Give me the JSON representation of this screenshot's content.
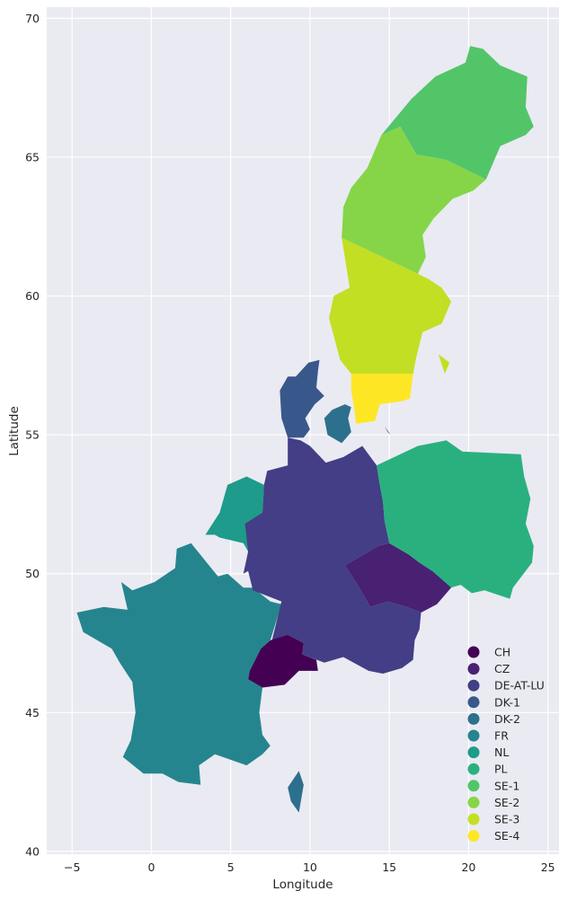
{
  "chart_data": {
    "type": "map",
    "xlabel": "Longitude",
    "ylabel": "Latitude",
    "xlim": [
      -6.6,
      25.7
    ],
    "ylim": [
      39.9,
      70.4
    ],
    "x_ticks": [
      -5,
      0,
      5,
      10,
      15,
      20,
      25
    ],
    "y_ticks": [
      40,
      45,
      50,
      55,
      60,
      65,
      70
    ],
    "x_tick_labels": [
      "−5",
      "0",
      "5",
      "10",
      "15",
      "20",
      "25"
    ],
    "y_tick_labels": [
      "40",
      "45",
      "50",
      "55",
      "60",
      "65",
      "70"
    ],
    "grid": true,
    "legend_position": "lower-right",
    "colormap": "viridis",
    "background_color": "#eaeaf2",
    "regions": [
      {
        "name": "CH",
        "color": "#440154"
      },
      {
        "name": "CZ",
        "color": "#482173"
      },
      {
        "name": "DE-AT-LU",
        "color": "#433e85"
      },
      {
        "name": "DK-1",
        "color": "#38588c"
      },
      {
        "name": "DK-2",
        "color": "#2d708e"
      },
      {
        "name": "FR",
        "color": "#25858e"
      },
      {
        "name": "NL",
        "color": "#1e9b8a"
      },
      {
        "name": "PL",
        "color": "#2ab07f"
      },
      {
        "name": "SE-1",
        "color": "#52c569"
      },
      {
        "name": "SE-2",
        "color": "#86d549"
      },
      {
        "name": "SE-3",
        "color": "#c2df23"
      },
      {
        "name": "SE-4",
        "color": "#fde725"
      }
    ]
  }
}
